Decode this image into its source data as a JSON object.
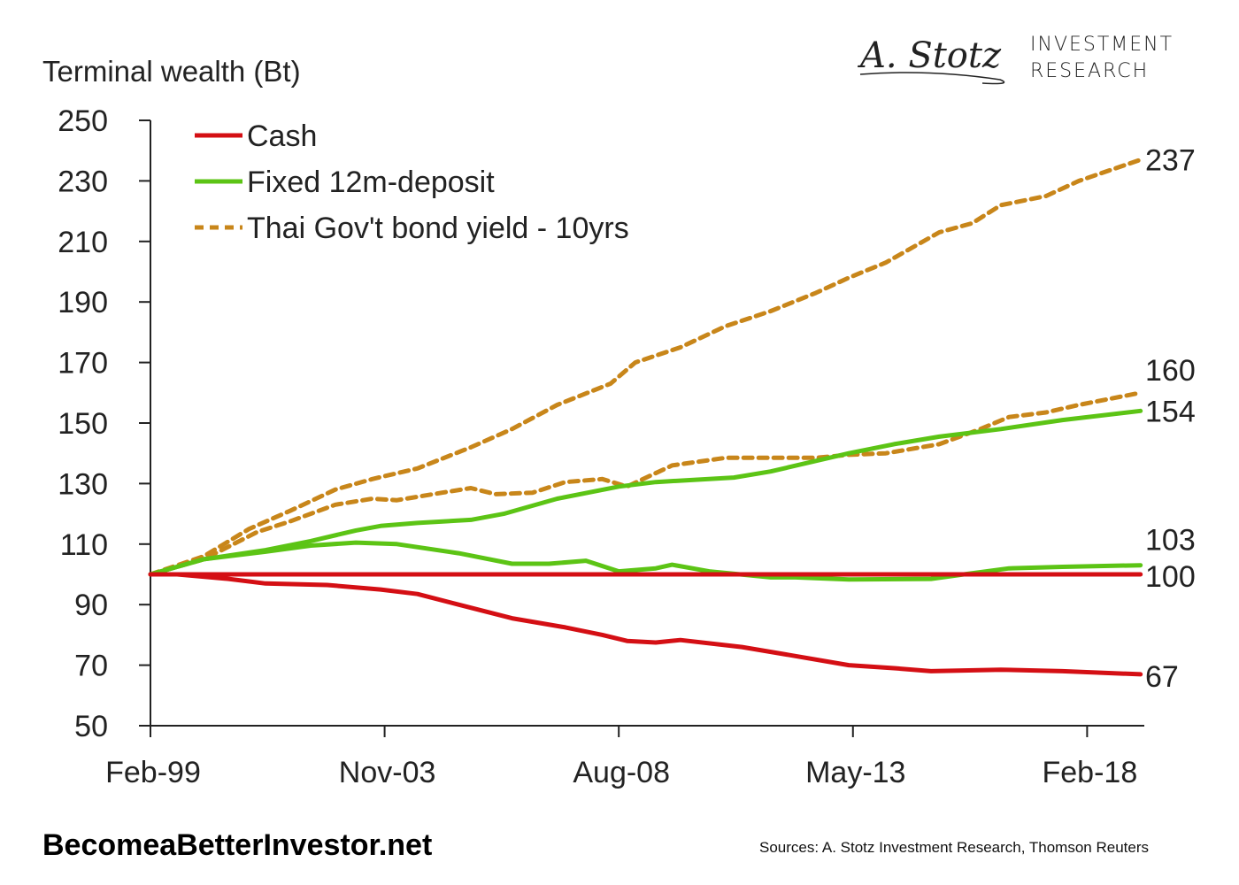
{
  "logo": {
    "signature": "A. Stotz",
    "line1": "INVESTMENT",
    "line2": "RESEARCH"
  },
  "footer": {
    "site": "BecomeaBetterInvestor.net",
    "sources": "Sources: A. Stotz Investment Research, Thomson Reuters"
  },
  "chart_data": {
    "type": "line",
    "title": "",
    "ylabel": "Terminal wealth (Bt)",
    "xlabel": "",
    "x_unit": "months since Feb-99",
    "xlim": [
      0,
      242
    ],
    "ylim": [
      50,
      250
    ],
    "yticks": [
      50,
      70,
      90,
      110,
      130,
      150,
      170,
      190,
      210,
      230,
      250
    ],
    "xticks": [
      {
        "x": 0,
        "label": "Feb-99"
      },
      {
        "x": 57,
        "label": "Nov-03"
      },
      {
        "x": 114,
        "label": "Aug-08"
      },
      {
        "x": 171,
        "label": "May-13"
      },
      {
        "x": 228,
        "label": "Feb-18"
      }
    ],
    "legend_position": "top-left",
    "legend": [
      {
        "label": "Cash",
        "color": "#d40f14",
        "dash": false
      },
      {
        "label": "Fixed 12m-deposit",
        "color": "#5cc415",
        "dash": false
      },
      {
        "label": "Thai Gov't bond yield - 10yrs",
        "color": "#c8861a",
        "dash": true
      }
    ],
    "series": [
      {
        "name": "Thai Gov't bond yield - 10yrs (nominal)",
        "color": "#c8861a",
        "dash": true,
        "end_label": "237",
        "x": [
          0,
          13,
          24,
          34,
          45,
          54,
          65,
          78,
          88,
          99,
          112,
          118,
          129,
          140,
          151,
          162,
          170,
          179,
          192,
          200,
          207,
          218,
          226,
          241
        ],
        "y": [
          100,
          106,
          115,
          121,
          128,
          131.5,
          135,
          142,
          148,
          156,
          163,
          170,
          175,
          182,
          187,
          193,
          198,
          203,
          213,
          216,
          222,
          225,
          230,
          237
        ]
      },
      {
        "name": "Thai Gov't bond yield - 10yrs (real)",
        "color": "#c8861a",
        "dash": true,
        "end_label": "160",
        "x": [
          0,
          13,
          26,
          34,
          45,
          54,
          60,
          71,
          78,
          84,
          93,
          101,
          110,
          116,
          127,
          140,
          151,
          162,
          170,
          179,
          192,
          202,
          209,
          218,
          226,
          241
        ],
        "y": [
          100,
          105,
          114,
          117.5,
          123,
          125,
          124.5,
          127,
          128.5,
          126.5,
          127,
          130.5,
          131.5,
          129,
          136,
          138.5,
          138.5,
          138.5,
          139.5,
          140,
          143,
          148,
          152,
          153.5,
          156,
          160
        ]
      },
      {
        "name": "Fixed 12m-deposit (nominal)",
        "color": "#5cc415",
        "dash": false,
        "end_label": "154",
        "x": [
          0,
          13,
          28,
          39,
          50,
          56,
          65,
          78,
          86,
          99,
          114,
          123,
          142,
          151,
          170,
          181,
          192,
          207,
          222,
          241
        ],
        "y": [
          100,
          105,
          108,
          111,
          114.5,
          116,
          117,
          118,
          120,
          125,
          129,
          130.5,
          132,
          134,
          140,
          143,
          145.5,
          148,
          151,
          154
        ]
      },
      {
        "name": "Fixed 12m-deposit (real)",
        "color": "#5cc415",
        "dash": false,
        "end_label": "103",
        "x": [
          0,
          13,
          28,
          39,
          50,
          60,
          75,
          88,
          97,
          106,
          114,
          123,
          127,
          136,
          151,
          157,
          170,
          190,
          198,
          209,
          222,
          241
        ],
        "y": [
          100,
          105,
          107.5,
          109.5,
          110.5,
          110,
          107,
          103.5,
          103.5,
          104.5,
          101,
          102,
          103.2,
          101,
          99,
          99,
          98.3,
          98.5,
          100,
          102,
          102.5,
          103
        ]
      },
      {
        "name": "Cash (nominal)",
        "color": "#d40f14",
        "dash": false,
        "end_label": "100",
        "x": [
          0,
          241
        ],
        "y": [
          100,
          100
        ]
      },
      {
        "name": "Cash (real)",
        "color": "#d40f14",
        "dash": false,
        "end_label": "67",
        "x": [
          0,
          6.5,
          19,
          28,
          43,
          56,
          65,
          75,
          88,
          101,
          110,
          116,
          123,
          129,
          144,
          157,
          170,
          181,
          190,
          207,
          222,
          241
        ],
        "y": [
          100,
          100,
          98.5,
          97,
          96.5,
          95,
          93.5,
          90,
          85.5,
          82.5,
          80,
          78,
          77.5,
          78.3,
          76,
          73,
          70,
          69,
          68,
          68.5,
          68,
          67
        ]
      }
    ]
  }
}
